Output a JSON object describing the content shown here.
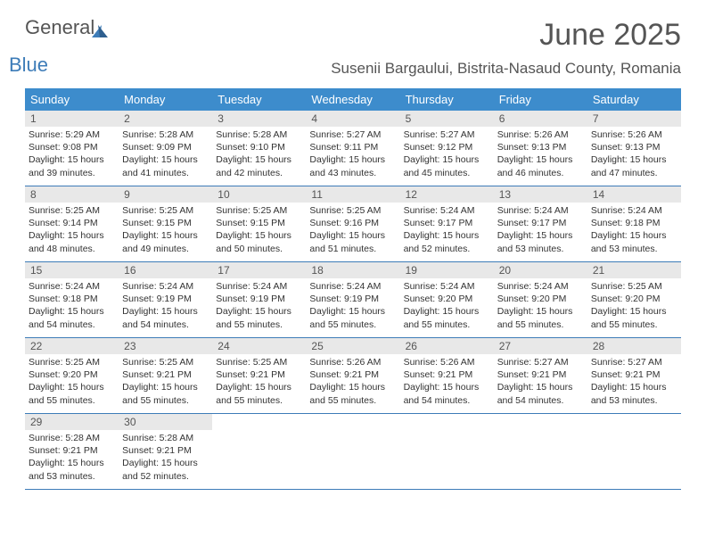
{
  "logo": {
    "part1": "General",
    "part2": "Blue"
  },
  "title": "June 2025",
  "location": "Susenii Bargaului, Bistrita-Nasaud County, Romania",
  "weekdays": [
    "Sunday",
    "Monday",
    "Tuesday",
    "Wednesday",
    "Thursday",
    "Friday",
    "Saturday"
  ],
  "header_bg": "#3d8ccc",
  "accent": "#3d7cb8",
  "daynum_bg": "#e8e8e8",
  "weeks": [
    [
      {
        "n": "1",
        "sr": "5:29 AM",
        "ss": "9:08 PM",
        "dh": "15",
        "dm": "39"
      },
      {
        "n": "2",
        "sr": "5:28 AM",
        "ss": "9:09 PM",
        "dh": "15",
        "dm": "41"
      },
      {
        "n": "3",
        "sr": "5:28 AM",
        "ss": "9:10 PM",
        "dh": "15",
        "dm": "42"
      },
      {
        "n": "4",
        "sr": "5:27 AM",
        "ss": "9:11 PM",
        "dh": "15",
        "dm": "43"
      },
      {
        "n": "5",
        "sr": "5:27 AM",
        "ss": "9:12 PM",
        "dh": "15",
        "dm": "45"
      },
      {
        "n": "6",
        "sr": "5:26 AM",
        "ss": "9:13 PM",
        "dh": "15",
        "dm": "46"
      },
      {
        "n": "7",
        "sr": "5:26 AM",
        "ss": "9:13 PM",
        "dh": "15",
        "dm": "47"
      }
    ],
    [
      {
        "n": "8",
        "sr": "5:25 AM",
        "ss": "9:14 PM",
        "dh": "15",
        "dm": "48"
      },
      {
        "n": "9",
        "sr": "5:25 AM",
        "ss": "9:15 PM",
        "dh": "15",
        "dm": "49"
      },
      {
        "n": "10",
        "sr": "5:25 AM",
        "ss": "9:15 PM",
        "dh": "15",
        "dm": "50"
      },
      {
        "n": "11",
        "sr": "5:25 AM",
        "ss": "9:16 PM",
        "dh": "15",
        "dm": "51"
      },
      {
        "n": "12",
        "sr": "5:24 AM",
        "ss": "9:17 PM",
        "dh": "15",
        "dm": "52"
      },
      {
        "n": "13",
        "sr": "5:24 AM",
        "ss": "9:17 PM",
        "dh": "15",
        "dm": "53"
      },
      {
        "n": "14",
        "sr": "5:24 AM",
        "ss": "9:18 PM",
        "dh": "15",
        "dm": "53"
      }
    ],
    [
      {
        "n": "15",
        "sr": "5:24 AM",
        "ss": "9:18 PM",
        "dh": "15",
        "dm": "54"
      },
      {
        "n": "16",
        "sr": "5:24 AM",
        "ss": "9:19 PM",
        "dh": "15",
        "dm": "54"
      },
      {
        "n": "17",
        "sr": "5:24 AM",
        "ss": "9:19 PM",
        "dh": "15",
        "dm": "55"
      },
      {
        "n": "18",
        "sr": "5:24 AM",
        "ss": "9:19 PM",
        "dh": "15",
        "dm": "55"
      },
      {
        "n": "19",
        "sr": "5:24 AM",
        "ss": "9:20 PM",
        "dh": "15",
        "dm": "55"
      },
      {
        "n": "20",
        "sr": "5:24 AM",
        "ss": "9:20 PM",
        "dh": "15",
        "dm": "55"
      },
      {
        "n": "21",
        "sr": "5:25 AM",
        "ss": "9:20 PM",
        "dh": "15",
        "dm": "55"
      }
    ],
    [
      {
        "n": "22",
        "sr": "5:25 AM",
        "ss": "9:20 PM",
        "dh": "15",
        "dm": "55"
      },
      {
        "n": "23",
        "sr": "5:25 AM",
        "ss": "9:21 PM",
        "dh": "15",
        "dm": "55"
      },
      {
        "n": "24",
        "sr": "5:25 AM",
        "ss": "9:21 PM",
        "dh": "15",
        "dm": "55"
      },
      {
        "n": "25",
        "sr": "5:26 AM",
        "ss": "9:21 PM",
        "dh": "15",
        "dm": "55"
      },
      {
        "n": "26",
        "sr": "5:26 AM",
        "ss": "9:21 PM",
        "dh": "15",
        "dm": "54"
      },
      {
        "n": "27",
        "sr": "5:27 AM",
        "ss": "9:21 PM",
        "dh": "15",
        "dm": "54"
      },
      {
        "n": "28",
        "sr": "5:27 AM",
        "ss": "9:21 PM",
        "dh": "15",
        "dm": "53"
      }
    ],
    [
      {
        "n": "29",
        "sr": "5:28 AM",
        "ss": "9:21 PM",
        "dh": "15",
        "dm": "53"
      },
      {
        "n": "30",
        "sr": "5:28 AM",
        "ss": "9:21 PM",
        "dh": "15",
        "dm": "52"
      },
      null,
      null,
      null,
      null,
      null
    ]
  ],
  "labels": {
    "sunrise": "Sunrise:",
    "sunset": "Sunset:",
    "daylight_prefix": "Daylight:",
    "hours_word": "hours",
    "and_word": "and",
    "minutes_word": "minutes."
  }
}
